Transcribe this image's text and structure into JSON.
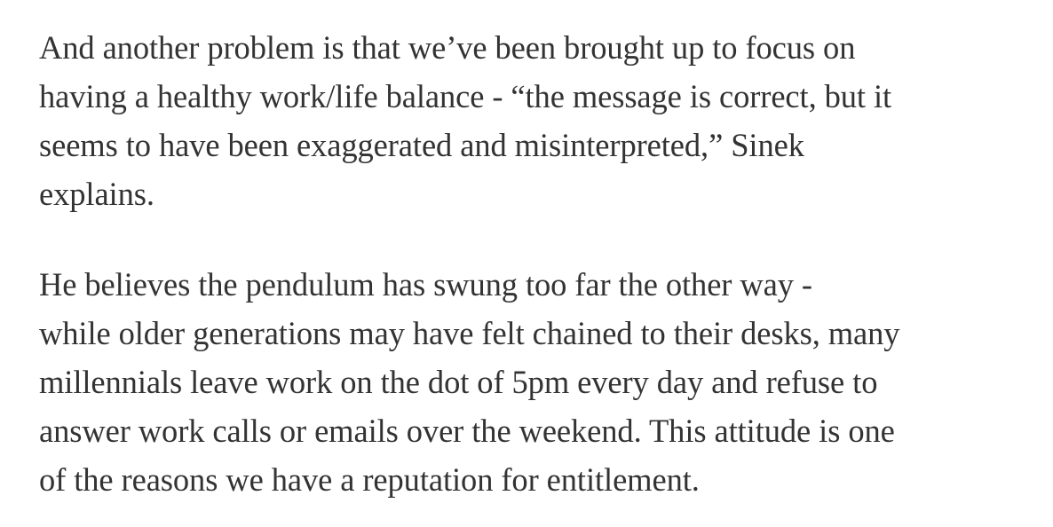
{
  "article": {
    "paragraphs": [
      {
        "lines": [
          "And another problem is that we’ve been brought up to focus on",
          "having a healthy work/life balance - “the message is correct, but it",
          "seems to have been exaggerated and misinterpreted,” Sinek",
          "explains."
        ]
      },
      {
        "lines": [
          "He believes the pendulum has swung too far the other way -",
          "while older generations may have felt chained to their desks, many",
          "millennials leave work on the dot of 5pm every day and refuse to",
          "answer work calls or emails over the weekend. This attitude is one",
          "of the reasons we have a reputation for entitlement."
        ]
      }
    ]
  },
  "colors": {
    "text": "#333333",
    "background": "#ffffff"
  }
}
